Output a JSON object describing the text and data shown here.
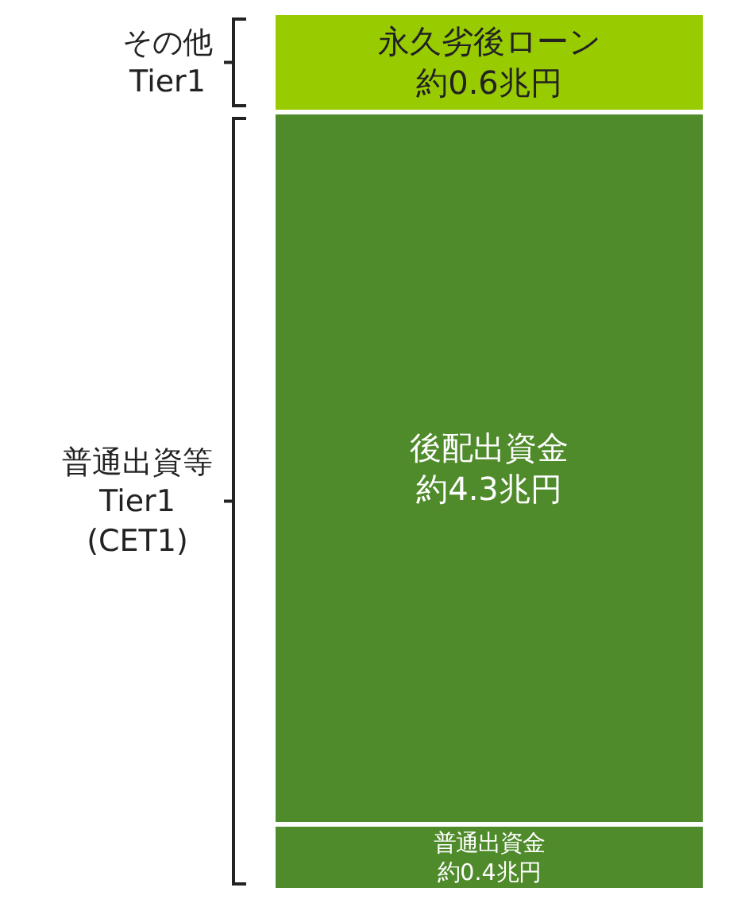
{
  "chart_data": {
    "type": "bar",
    "stacked": true,
    "categories": [
      null
    ],
    "ylim": [
      0,
      5.3
    ],
    "tick_labels": false,
    "legend": false,
    "grid": false,
    "series": [
      {
        "name": "普通出資金",
        "color": "#4f8a2b",
        "values": [
          0.4
        ],
        "value_labels": [
          "約0.4兆円"
        ]
      },
      {
        "name": "後配出資金",
        "color": "#4f8a2b",
        "values": [
          4.3
        ],
        "value_labels": [
          "約4.3兆円"
        ]
      },
      {
        "name": "永久劣後ローン",
        "color": "#99cc00",
        "values": [
          0.6
        ],
        "value_labels": [
          "約0.6兆円"
        ]
      }
    ],
    "annotations": [
      "その他\nTier1",
      "普通出資等\nTier1\n(CET1)"
    ]
  }
}
